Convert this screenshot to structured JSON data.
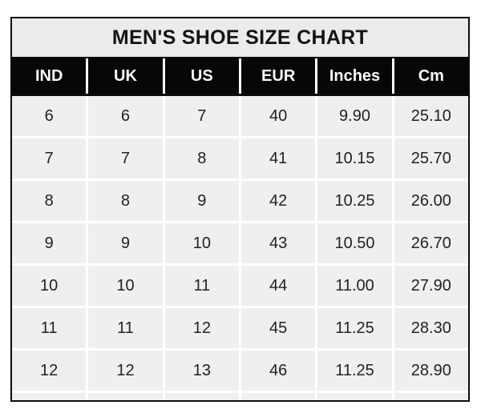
{
  "title": "MEN'S SHOE SIZE CHART",
  "chart_data": {
    "type": "table",
    "title": "MEN'S SHOE SIZE CHART",
    "columns": [
      "IND",
      "UK",
      "US",
      "EUR",
      "Inches",
      "Cm"
    ],
    "rows": [
      [
        "6",
        "6",
        "7",
        "40",
        "9.90",
        "25.10"
      ],
      [
        "7",
        "7",
        "8",
        "41",
        "10.15",
        "25.70"
      ],
      [
        "8",
        "8",
        "9",
        "42",
        "10.25",
        "26.00"
      ],
      [
        "9",
        "9",
        "10",
        "43",
        "10.50",
        "26.70"
      ],
      [
        "10",
        "10",
        "11",
        "44",
        "11.00",
        "27.90"
      ],
      [
        "11",
        "11",
        "12",
        "45",
        "11.25",
        "28.30"
      ],
      [
        "12",
        "12",
        "13",
        "46",
        "11.25",
        "28.90"
      ]
    ]
  },
  "colors": {
    "border_black": "#0c0c0c",
    "header_bg": "#070707",
    "header_text": "#fafafa",
    "title_bg": "#ebebeb",
    "cell_bg": "#f0efef",
    "cell_text": "#222222",
    "grid_line": "#ffffff",
    "page_bg": "#ffffff"
  }
}
